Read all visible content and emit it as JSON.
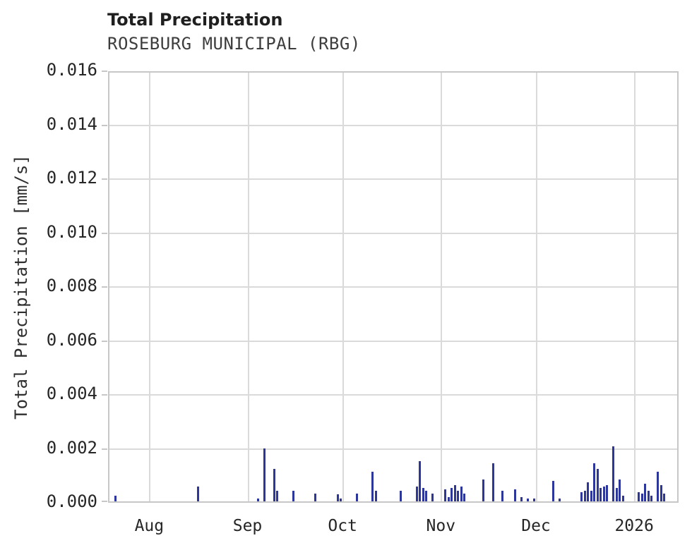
{
  "title": "Total Precipitation",
  "subtitle": "ROSEBURG MUNICIPAL (RBG)",
  "chart_data": {
    "type": "bar",
    "title": "Total Precipitation",
    "subtitle": "ROSEBURG MUNICIPAL (RBG)",
    "xlabel": "",
    "ylabel": "Total Precipitation [mm/s]",
    "ylim": [
      0,
      0.016
    ],
    "y_ticks": [
      0.0,
      0.002,
      0.004,
      0.006,
      0.008,
      0.01,
      0.012,
      0.014,
      0.016
    ],
    "x_domain": [
      "2025-07-19",
      "2026-01-15"
    ],
    "x_ticks": [
      {
        "label": "Aug",
        "date": "2025-08-01"
      },
      {
        "label": "Sep",
        "date": "2025-09-01"
      },
      {
        "label": "Oct",
        "date": "2025-10-01"
      },
      {
        "label": "Nov",
        "date": "2025-11-01"
      },
      {
        "label": "Dec",
        "date": "2025-12-01"
      },
      {
        "label": "2026",
        "date": "2026-01-01"
      }
    ],
    "grid": true,
    "legend": "none",
    "colors": {
      "bar": "#2d379b",
      "gridline": "#dadada",
      "spine": "#c7c7c7",
      "title": "#1f1f1f",
      "subtitle": "#3d3d3d",
      "tick_label": "#262626"
    },
    "series": [
      {
        "name": "Total Precipitation",
        "units": "mm/s",
        "data": [
          [
            "2025-07-21",
            0.0002
          ],
          [
            "2025-08-16",
            0.00055
          ],
          [
            "2025-09-04",
            0.0001
          ],
          [
            "2025-09-06",
            0.00195
          ],
          [
            "2025-09-09",
            0.0012
          ],
          [
            "2025-09-10",
            0.0004
          ],
          [
            "2025-09-15",
            0.0004
          ],
          [
            "2025-09-22",
            0.0003
          ],
          [
            "2025-09-29",
            0.00025
          ],
          [
            "2025-09-30",
            0.0001
          ],
          [
            "2025-10-05",
            0.0003
          ],
          [
            "2025-10-10",
            0.0011
          ],
          [
            "2025-10-11",
            0.0004
          ],
          [
            "2025-10-19",
            0.0004
          ],
          [
            "2025-10-24",
            0.00055
          ],
          [
            "2025-10-25",
            0.0015
          ],
          [
            "2025-10-26",
            0.0005
          ],
          [
            "2025-10-27",
            0.0004
          ],
          [
            "2025-10-29",
            0.0003
          ],
          [
            "2025-11-02",
            0.00045
          ],
          [
            "2025-11-03",
            0.00015
          ],
          [
            "2025-11-04",
            0.0005
          ],
          [
            "2025-11-05",
            0.0006
          ],
          [
            "2025-11-06",
            0.0004
          ],
          [
            "2025-11-07",
            0.00055
          ],
          [
            "2025-11-08",
            0.0003
          ],
          [
            "2025-11-14",
            0.0008
          ],
          [
            "2025-11-17",
            0.0014
          ],
          [
            "2025-11-20",
            0.0004
          ],
          [
            "2025-11-24",
            0.00045
          ],
          [
            "2025-11-26",
            0.00015
          ],
          [
            "2025-11-28",
            0.0001
          ],
          [
            "2025-11-30",
            0.0001
          ],
          [
            "2025-12-06",
            0.00075
          ],
          [
            "2025-12-08",
            0.0001
          ],
          [
            "2025-12-15",
            0.00035
          ],
          [
            "2025-12-16",
            0.0004
          ],
          [
            "2025-12-17",
            0.0007
          ],
          [
            "2025-12-18",
            0.0004
          ],
          [
            "2025-12-19",
            0.0014
          ],
          [
            "2025-12-20",
            0.0012
          ],
          [
            "2025-12-21",
            0.0005
          ],
          [
            "2025-12-22",
            0.00055
          ],
          [
            "2025-12-23",
            0.0006
          ],
          [
            "2025-12-25",
            0.00205
          ],
          [
            "2025-12-26",
            0.0005
          ],
          [
            "2025-12-27",
            0.0008
          ],
          [
            "2025-12-28",
            0.0002
          ],
          [
            "2026-01-02",
            0.00035
          ],
          [
            "2026-01-03",
            0.0003
          ],
          [
            "2026-01-04",
            0.00065
          ],
          [
            "2026-01-05",
            0.0004
          ],
          [
            "2026-01-06",
            0.0002
          ],
          [
            "2026-01-08",
            0.0011
          ],
          [
            "2026-01-09",
            0.0006
          ],
          [
            "2026-01-10",
            0.0003
          ]
        ]
      }
    ]
  }
}
